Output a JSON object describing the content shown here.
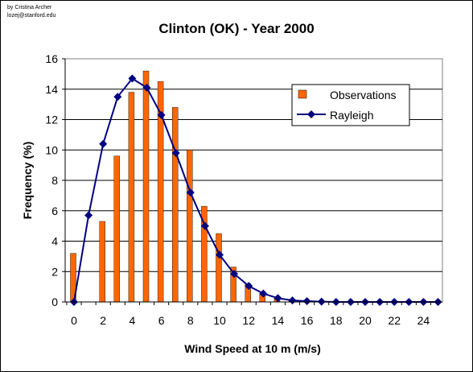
{
  "credit": {
    "line1": "by Cristina Archer",
    "line2": "lozej@stanford.edu"
  },
  "chart_data": {
    "type": "bar",
    "title": "Clinton (OK) - Year 2000",
    "xlabel": "Wind Speed at 10 m (m/s)",
    "ylabel": "Frequency (%)",
    "ylim": [
      0,
      16
    ],
    "xlim": [
      0,
      25
    ],
    "x": [
      0,
      1,
      2,
      3,
      4,
      5,
      6,
      7,
      8,
      9,
      10,
      11,
      12,
      13,
      14,
      15,
      16,
      17,
      18,
      19,
      20,
      21,
      22,
      23,
      24,
      25
    ],
    "x_ticks": [
      0,
      2,
      4,
      6,
      8,
      10,
      12,
      14,
      16,
      18,
      20,
      22,
      24
    ],
    "y_ticks": [
      0,
      2,
      4,
      6,
      8,
      10,
      12,
      14,
      16
    ],
    "grid": true,
    "legend_position": "top-right",
    "series": [
      {
        "name": "Observations",
        "kind": "bar",
        "color": "#FF6600",
        "values": [
          3.2,
          0,
          5.3,
          9.6,
          13.8,
          15.2,
          14.5,
          12.8,
          10.0,
          6.3,
          4.5,
          2.3,
          1.2,
          0.5,
          0.2,
          0.1,
          0.05,
          0,
          0,
          0,
          0,
          0,
          0,
          0,
          0,
          0
        ]
      },
      {
        "name": "Rayleigh",
        "kind": "line",
        "color": "#000080",
        "marker": "diamond",
        "values": [
          0,
          5.7,
          10.4,
          13.5,
          14.7,
          14.1,
          12.3,
          9.8,
          7.2,
          5.0,
          3.1,
          1.85,
          1.05,
          0.55,
          0.25,
          0.1,
          0.05,
          0.02,
          0,
          0,
          0,
          0,
          0,
          0,
          0,
          0
        ]
      }
    ]
  }
}
